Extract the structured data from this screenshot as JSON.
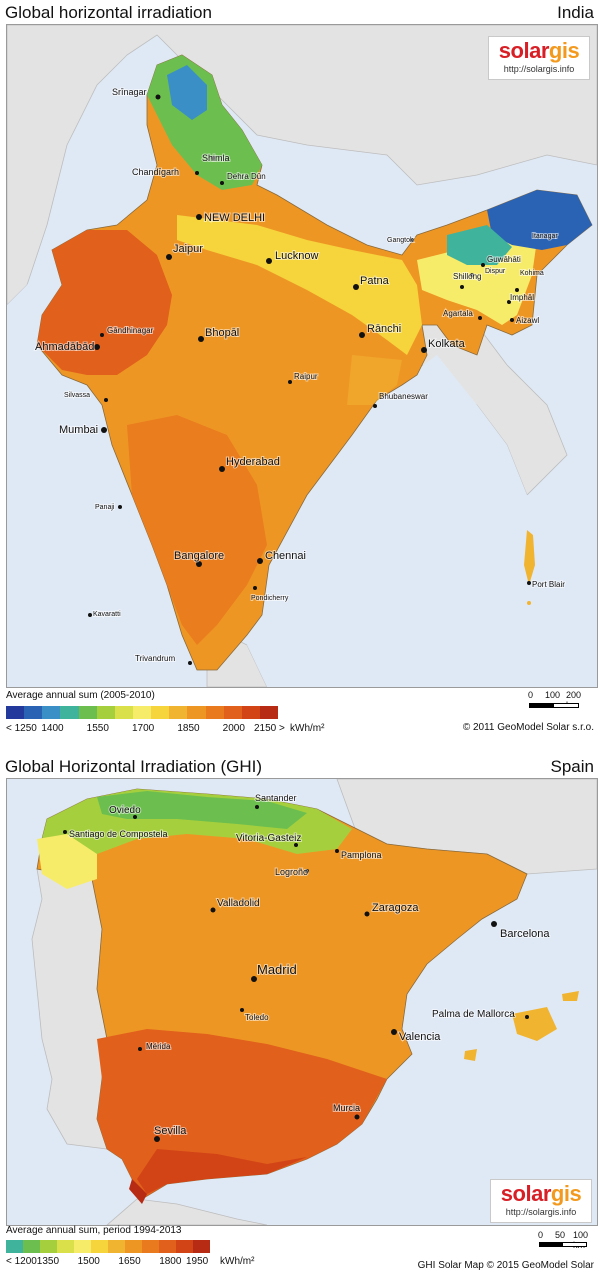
{
  "india": {
    "title": "Global horizontal irradiation",
    "country": "India",
    "logo": {
      "brand_a": "solar",
      "brand_b": "gis",
      "url": "http://solargis.info"
    },
    "legend": {
      "title": "Average annual sum (2005-2010)",
      "colors": [
        "#233a9c",
        "#2a62b4",
        "#3a8fc7",
        "#3fb39c",
        "#6cbf4f",
        "#a6cf3d",
        "#d9e04a",
        "#f7ec6a",
        "#f6d53c",
        "#f1b430",
        "#ee9624",
        "#e97a1e",
        "#e1601b",
        "#d24416",
        "#b72a14"
      ],
      "ticks": [
        "< 1250",
        "1400",
        "1550",
        "1700",
        "1850",
        "2000",
        "2150 >"
      ],
      "unit": "kWh/m²"
    },
    "scale": {
      "labels": [
        "0",
        "100",
        "200 km"
      ]
    },
    "copyright": "© 2011 GeoModel Solar s.r.o.",
    "cities": [
      {
        "name": "Srīnagar",
        "size": "s"
      },
      {
        "name": "Shimla",
        "size": "s"
      },
      {
        "name": "Chandīgarh",
        "size": "s"
      },
      {
        "name": "Dehra Dūn",
        "size": "s"
      },
      {
        "name": "NEW DELHI",
        "size": "l"
      },
      {
        "name": "Jaipur",
        "size": "l"
      },
      {
        "name": "Lucknow",
        "size": "l"
      },
      {
        "name": "Patna",
        "size": "l"
      },
      {
        "name": "Gangtok",
        "size": "xs"
      },
      {
        "name": "Itanagar",
        "size": "xs"
      },
      {
        "name": "Guwāhāti",
        "size": "s"
      },
      {
        "name": "Dispur",
        "size": "xs"
      },
      {
        "name": "Shillong",
        "size": "s"
      },
      {
        "name": "Kohima",
        "size": "xs"
      },
      {
        "name": "Imphāl",
        "size": "s"
      },
      {
        "name": "Agartala",
        "size": "s"
      },
      {
        "name": "Aizawl",
        "size": "s"
      },
      {
        "name": "Gāndhinagar",
        "size": "s"
      },
      {
        "name": "Ahmadābād",
        "size": "l"
      },
      {
        "name": "Bhopāl",
        "size": "l"
      },
      {
        "name": "Rānchi",
        "size": "l"
      },
      {
        "name": "Kolkata",
        "size": "l"
      },
      {
        "name": "Raipur",
        "size": "s"
      },
      {
        "name": "Silvassa",
        "size": "xs"
      },
      {
        "name": "Bhubaneswar",
        "size": "s"
      },
      {
        "name": "Mumbai",
        "size": "l"
      },
      {
        "name": "Hyderabad",
        "size": "l"
      },
      {
        "name": "Panaji",
        "size": "xs"
      },
      {
        "name": "Bangalore",
        "size": "l"
      },
      {
        "name": "Chennai",
        "size": "l"
      },
      {
        "name": "Pondicherry",
        "size": "xs"
      },
      {
        "name": "Port Blair",
        "size": "s"
      },
      {
        "name": "Kavaratti",
        "size": "xs"
      },
      {
        "name": "Trivandrum",
        "size": "s"
      }
    ]
  },
  "spain": {
    "title": "Global Horizontal Irradiation (GHI)",
    "country": "Spain",
    "logo": {
      "brand_a": "solar",
      "brand_b": "gis",
      "url": "http://solargis.info"
    },
    "legend": {
      "title": "Average annual sum, period 1994-2013",
      "colors": [
        "#3fb39c",
        "#6cbf4f",
        "#a6cf3d",
        "#d9e04a",
        "#f7ec6a",
        "#f6d53c",
        "#f1b430",
        "#ee9624",
        "#e97a1e",
        "#e1601b",
        "#d24416",
        "#b72a14"
      ],
      "ticks": [
        "< 1200",
        "1350",
        "1500",
        "1650",
        "1800",
        "1950"
      ],
      "unit": "kWh/m²"
    },
    "scale": {
      "labels": [
        "0",
        "50",
        "100 km"
      ]
    },
    "copyright": "GHI Solar Map © 2015 GeoModel Solar",
    "cities": [
      {
        "name": "Santander",
        "size": "s"
      },
      {
        "name": "Oviedo",
        "size": "m"
      },
      {
        "name": "Santiago de Compostela",
        "size": "s"
      },
      {
        "name": "Vitoria-Gasteiz",
        "size": "m"
      },
      {
        "name": "Pamplona",
        "size": "s"
      },
      {
        "name": "Logroño",
        "size": "s"
      },
      {
        "name": "Valladolid",
        "size": "m"
      },
      {
        "name": "Zaragoza",
        "size": "l"
      },
      {
        "name": "Barcelona",
        "size": "l"
      },
      {
        "name": "Madrid",
        "size": "xl"
      },
      {
        "name": "Toledo",
        "size": "s"
      },
      {
        "name": "Palma de Mallorca",
        "size": "m"
      },
      {
        "name": "Mérida",
        "size": "s"
      },
      {
        "name": "Valencia",
        "size": "l"
      },
      {
        "name": "Murcia",
        "size": "m"
      },
      {
        "name": "Sevilla",
        "size": "l"
      }
    ]
  }
}
